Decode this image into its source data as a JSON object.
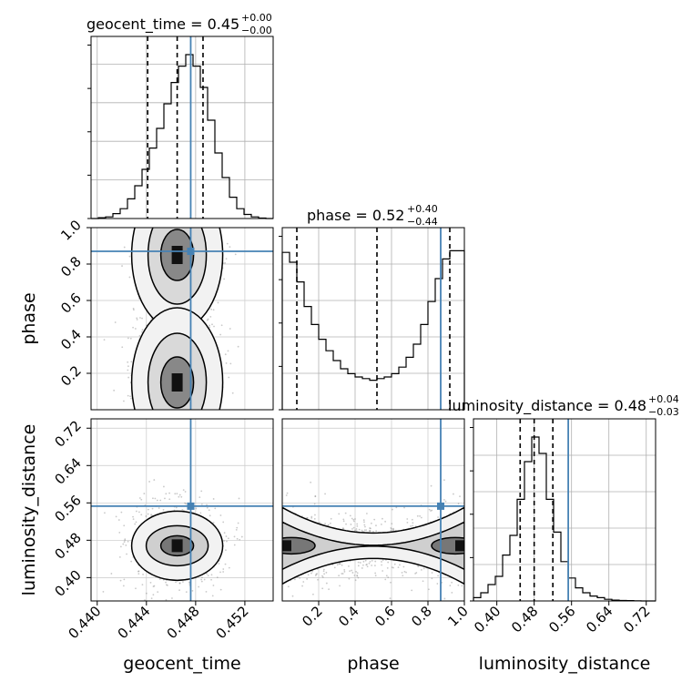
{
  "chart_data": {
    "type": "corner",
    "parameters": [
      "geocent_time",
      "phase",
      "luminosity_distance"
    ],
    "axis_labels": [
      "geocent_time",
      "phase",
      "luminosity_distance"
    ],
    "ranges": {
      "geocent_time": [
        0.4395,
        0.4543
      ],
      "phase": [
        0.0,
        1.0
      ],
      "luminosity_distance": [
        0.35,
        0.74
      ]
    },
    "ticks": {
      "geocent_time": [
        "0.440",
        "0.444",
        "0.448",
        "0.452"
      ],
      "phase": [
        "0.2",
        "0.4",
        "0.6",
        "0.8",
        "1.0"
      ],
      "luminosity_distance_x": [
        "0.40",
        "0.48",
        "0.56",
        "0.64",
        "0.72"
      ],
      "luminosity_distance_y": [
        "0.40",
        "0.48",
        "0.56",
        "0.64",
        "0.72"
      ],
      "phase_y": [
        "0.2",
        "0.4",
        "0.6",
        "0.8",
        "1.0"
      ]
    },
    "titles": {
      "geocent_time": {
        "prefix": "geocent_time = 0.45",
        "plus": "+0.00",
        "minus": "−0.00"
      },
      "phase": {
        "prefix": "phase = 0.52",
        "plus": "+0.40",
        "minus": "−0.44"
      },
      "luminosity_distance": {
        "prefix": "luminosity_distance = 0.48",
        "plus": "+0.04",
        "minus": "−0.03"
      }
    },
    "quantiles": {
      "geocent_time": [
        0.4441,
        0.4465,
        0.4486
      ],
      "phase": [
        0.08,
        0.52,
        0.92
      ],
      "luminosity_distance": [
        0.45,
        0.48,
        0.52
      ]
    },
    "truths": {
      "geocent_time": 0.4476,
      "phase": 0.87,
      "luminosity_distance": 0.553
    },
    "histograms": {
      "geocent_time": {
        "edges_start": 0.4395,
        "edges_end": 0.4543,
        "counts": [
          0,
          0.005,
          0.01,
          0.03,
          0.06,
          0.12,
          0.2,
          0.3,
          0.43,
          0.55,
          0.7,
          0.83,
          0.93,
          1.0,
          0.93,
          0.8,
          0.6,
          0.4,
          0.25,
          0.13,
          0.06,
          0.025,
          0.01,
          0.003,
          0
        ]
      },
      "phase": {
        "edges_start": 0.0,
        "edges_end": 1.0,
        "counts": [
          0.96,
          0.9,
          0.78,
          0.63,
          0.52,
          0.43,
          0.36,
          0.3,
          0.25,
          0.22,
          0.2,
          0.19,
          0.18,
          0.19,
          0.2,
          0.22,
          0.26,
          0.32,
          0.4,
          0.52,
          0.66,
          0.8,
          0.92,
          0.97,
          0.97
        ]
      },
      "luminosity_distance": {
        "edges_start": 0.35,
        "edges_end": 0.74,
        "counts": [
          0.02,
          0.05,
          0.1,
          0.15,
          0.28,
          0.4,
          0.62,
          0.85,
          1.0,
          0.9,
          0.62,
          0.42,
          0.24,
          0.14,
          0.08,
          0.05,
          0.03,
          0.02,
          0.01,
          0.005,
          0.003,
          0.002,
          0.001,
          0,
          0
        ]
      }
    },
    "grid": true,
    "truth_color": "#4682b4",
    "quantile_style": "dashed"
  }
}
